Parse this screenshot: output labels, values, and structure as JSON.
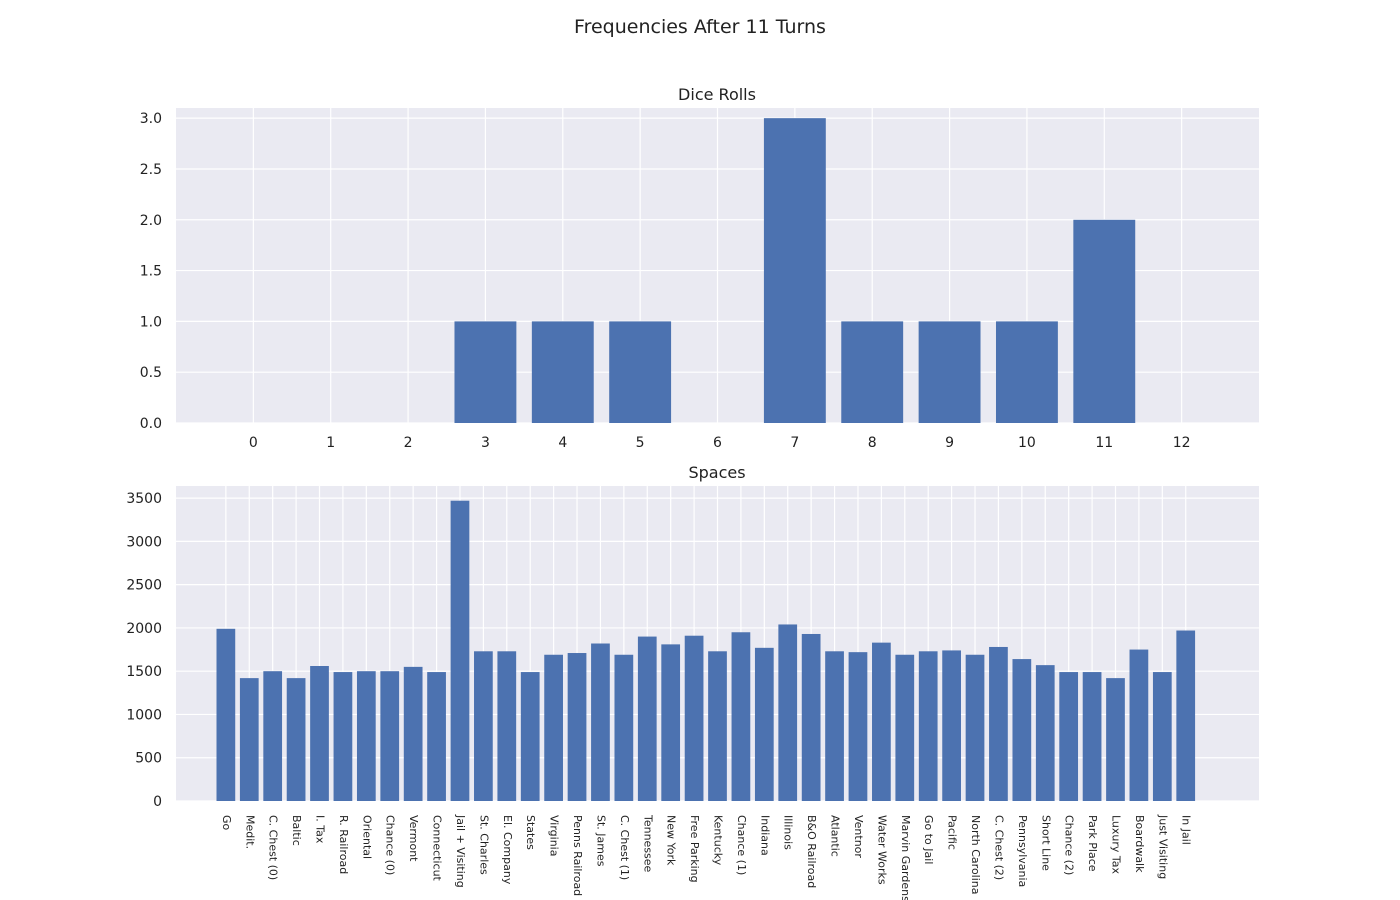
{
  "figure_title": "Frequencies After 11 Turns",
  "colors": {
    "bar": "#4c72b0",
    "plot_background": "#eaeaf2",
    "grid": "#ffffff"
  },
  "chart_data": [
    {
      "type": "bar",
      "title": "Dice Rolls",
      "categories": [
        "0",
        "1",
        "2",
        "3",
        "4",
        "5",
        "6",
        "7",
        "8",
        "9",
        "10",
        "11",
        "12"
      ],
      "values": [
        0,
        0,
        0,
        1,
        1,
        1,
        0,
        3,
        1,
        1,
        1,
        2,
        0
      ],
      "ylim": [
        0,
        3.1
      ],
      "yticks": [
        0.0,
        0.5,
        1.0,
        1.5,
        2.0,
        2.5,
        3.0
      ],
      "ytick_labels": [
        "0.0",
        "0.5",
        "1.0",
        "1.5",
        "2.0",
        "2.5",
        "3.0"
      ],
      "xlim": [
        -1,
        13
      ],
      "grid": true
    },
    {
      "type": "bar",
      "title": "Spaces",
      "categories": [
        "Go",
        "Medit.",
        "C. Chest (0)",
        "Baltic",
        "I. Tax",
        "R. Railroad",
        "Oriental",
        "Chance (0)",
        "Vermont",
        "Connecticut",
        "Jail + Visiting",
        "St. Charles",
        "El. Company",
        "States",
        "Virginia",
        "Penns Railroad",
        "St. James",
        "C. Chest (1)",
        "Tennessee",
        "New York",
        "Free Parking",
        "Kentucky",
        "Chance (1)",
        "Indiana",
        "Illinois",
        "B&O Railroad",
        "Atlantic",
        "Ventnor",
        "Water Works",
        "Marvin Gardens",
        "Go to Jail",
        "Pacific",
        "North Carolina",
        "C. Chest (2)",
        "Pennsylvania",
        "Short Line",
        "Chance (2)",
        "Park Place",
        "Luxury Tax",
        "Boardwalk",
        "Just Visiting",
        "In Jail"
      ],
      "values": [
        1990,
        1420,
        1500,
        1420,
        1560,
        1490,
        1500,
        1500,
        1550,
        1490,
        3470,
        1730,
        1730,
        1490,
        1690,
        1710,
        1820,
        1690,
        1900,
        1810,
        1910,
        1730,
        1950,
        1770,
        2040,
        1930,
        1730,
        1720,
        1830,
        1690,
        1730,
        1740,
        1690,
        1780,
        1640,
        1570,
        1490,
        1490,
        1420,
        1750,
        1490,
        1970
      ],
      "ylim": [
        0,
        3640
      ],
      "yticks": [
        0,
        500,
        1000,
        1500,
        2000,
        2500,
        3000,
        3500
      ],
      "ytick_labels": [
        "0",
        "500",
        "1000",
        "1500",
        "2000",
        "2500",
        "3000",
        "3500"
      ],
      "xlim": [
        -2.13,
        44.13
      ],
      "grid": true
    }
  ]
}
